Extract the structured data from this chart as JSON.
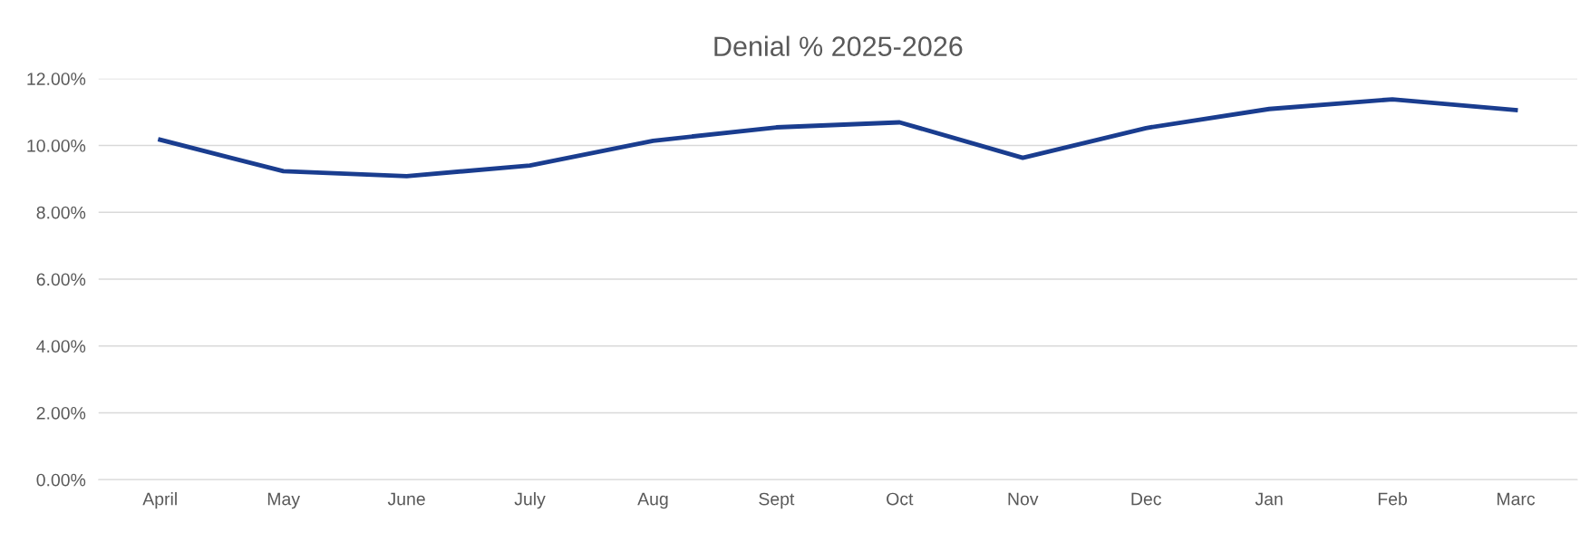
{
  "chart_data": {
    "type": "line",
    "title": "Denial % 2025-2026",
    "categories": [
      "April",
      "May",
      "June",
      "July",
      "Aug",
      "Sept",
      "Oct",
      "Nov",
      "Dec",
      "Jan",
      "Feb",
      "Marc"
    ],
    "series": [
      {
        "color": "#1a3d8f",
        "values": [
          10.17,
          9.23,
          9.08,
          9.4,
          10.14,
          10.54,
          10.69,
          9.63,
          10.52,
          11.09,
          11.38,
          11.06
        ]
      }
    ],
    "ylim": [
      0,
      12
    ],
    "yticks": [
      {
        "value": 0,
        "label": "0.00%"
      },
      {
        "value": 2,
        "label": "2.00%"
      },
      {
        "value": 4,
        "label": "4.00%"
      },
      {
        "value": 6,
        "label": "6.00%"
      },
      {
        "value": 8,
        "label": "8.00%"
      },
      {
        "value": 10,
        "label": "10.00%"
      },
      {
        "value": 12,
        "label": "12.00%"
      }
    ],
    "grid": "y"
  }
}
